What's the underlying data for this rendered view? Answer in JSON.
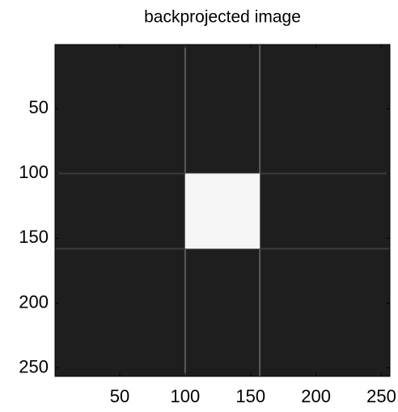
{
  "chart_data": {
    "type": "image",
    "title": "backprojected image",
    "xlim": [
      0.5,
      256.5
    ],
    "ylim": [
      0.5,
      256.5
    ],
    "y_reversed": true,
    "xticks": [
      50,
      100,
      150,
      200,
      250
    ],
    "yticks": [
      50,
      100,
      150,
      200,
      250
    ],
    "background": "#1e1e1e",
    "regions": [
      {
        "x": [
          100,
          157
        ],
        "y": [
          100,
          158
        ],
        "color": "#f5f5f5"
      }
    ]
  }
}
